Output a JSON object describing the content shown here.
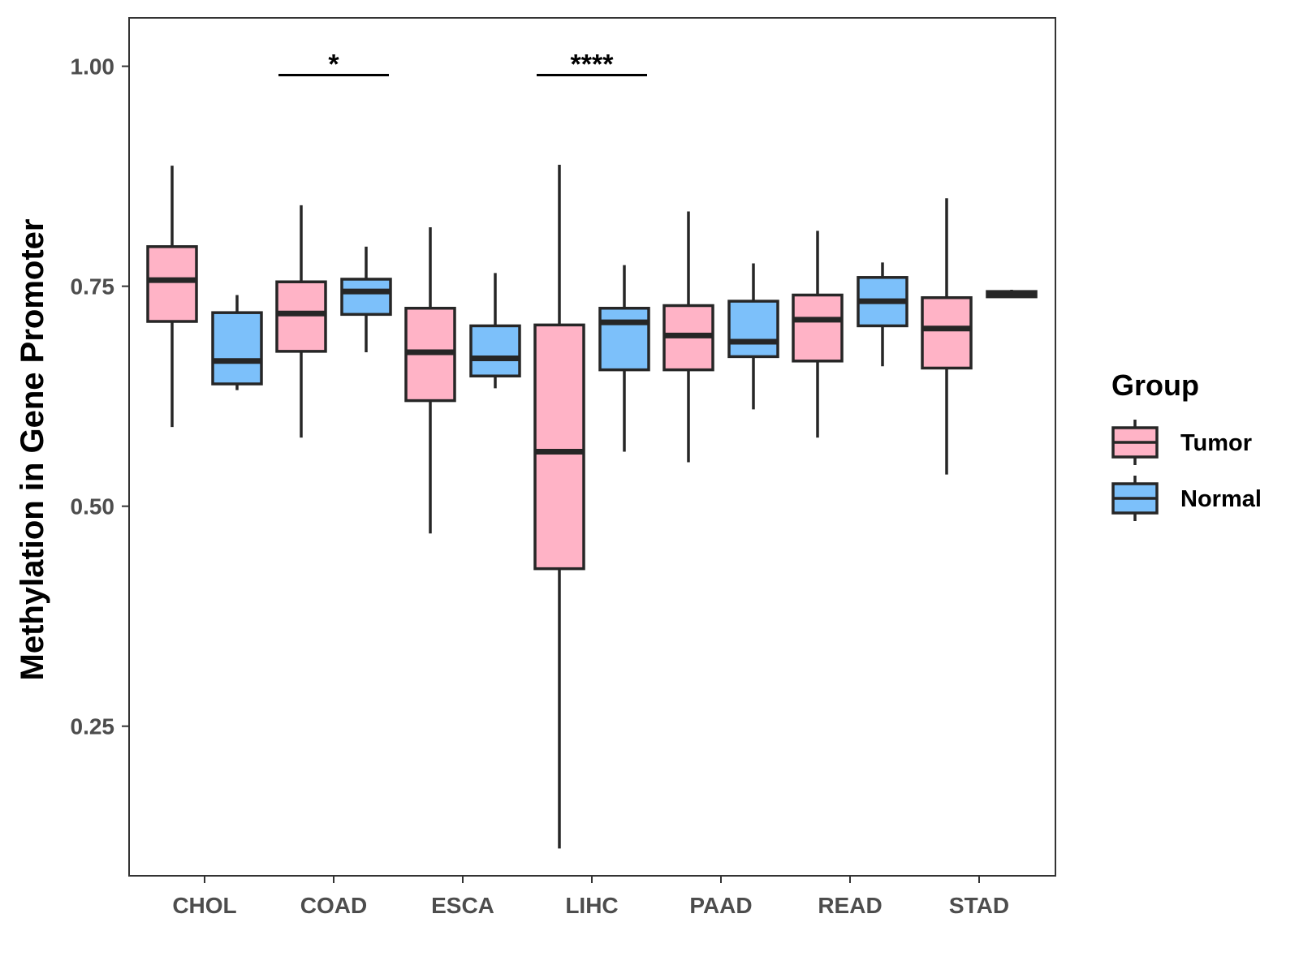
{
  "chart_data": {
    "type": "boxplot",
    "title": "",
    "xlabel": "",
    "ylabel": "Methylation in Gene Promoter",
    "ylim": [
      0.08,
      1.055
    ],
    "yticks": [
      0.25,
      0.5,
      0.75,
      1.0
    ],
    "ytick_labels": [
      "0.25",
      "0.50",
      "0.75",
      "1.00"
    ],
    "categories": [
      "CHOL",
      "COAD",
      "ESCA",
      "LIHC",
      "PAAD",
      "READ",
      "STAD"
    ],
    "grid": false,
    "legend_position": "right",
    "legend": {
      "title": "Group",
      "entries": [
        "Tumor",
        "Normal"
      ]
    },
    "colors": {
      "Tumor": "#ffb3c6",
      "Normal": "#7cc0fa",
      "outline": "#262626"
    },
    "series": [
      {
        "name": "Tumor",
        "boxes": [
          {
            "category": "CHOL",
            "whisker_low": 0.59,
            "q1": 0.71,
            "median": 0.757,
            "q3": 0.795,
            "whisker_high": 0.887
          },
          {
            "category": "COAD",
            "whisker_low": 0.578,
            "q1": 0.676,
            "median": 0.719,
            "q3": 0.755,
            "whisker_high": 0.842
          },
          {
            "category": "ESCA",
            "whisker_low": 0.469,
            "q1": 0.62,
            "median": 0.675,
            "q3": 0.725,
            "whisker_high": 0.817
          },
          {
            "category": "LIHC",
            "whisker_low": 0.111,
            "q1": 0.429,
            "median": 0.562,
            "q3": 0.706,
            "whisker_high": 0.888
          },
          {
            "category": "PAAD",
            "whisker_low": 0.55,
            "q1": 0.655,
            "median": 0.694,
            "q3": 0.728,
            "whisker_high": 0.835
          },
          {
            "category": "READ",
            "whisker_low": 0.578,
            "q1": 0.665,
            "median": 0.712,
            "q3": 0.74,
            "whisker_high": 0.813
          },
          {
            "category": "STAD",
            "whisker_low": 0.536,
            "q1": 0.657,
            "median": 0.702,
            "q3": 0.737,
            "whisker_high": 0.85
          }
        ]
      },
      {
        "name": "Normal",
        "boxes": [
          {
            "category": "CHOL",
            "whisker_low": 0.632,
            "q1": 0.639,
            "median": 0.665,
            "q3": 0.72,
            "whisker_high": 0.74
          },
          {
            "category": "COAD",
            "whisker_low": 0.675,
            "q1": 0.718,
            "median": 0.744,
            "q3": 0.758,
            "whisker_high": 0.795
          },
          {
            "category": "ESCA",
            "whisker_low": 0.634,
            "q1": 0.648,
            "median": 0.668,
            "q3": 0.705,
            "whisker_high": 0.765
          },
          {
            "category": "LIHC",
            "whisker_low": 0.562,
            "q1": 0.655,
            "median": 0.709,
            "q3": 0.725,
            "whisker_high": 0.774
          },
          {
            "category": "PAAD",
            "whisker_low": 0.61,
            "q1": 0.67,
            "median": 0.687,
            "q3": 0.733,
            "whisker_high": 0.776
          },
          {
            "category": "READ",
            "whisker_low": 0.659,
            "q1": 0.705,
            "median": 0.733,
            "q3": 0.76,
            "whisker_high": 0.777
          },
          {
            "category": "STAD",
            "whisker_low": 0.738,
            "q1": 0.738,
            "median": 0.741,
            "q3": 0.744,
            "whisker_high": 0.746
          }
        ]
      }
    ],
    "annotations": [
      {
        "category": "COAD",
        "label": "*",
        "y": 0.99
      },
      {
        "category": "LIHC",
        "label": "****",
        "y": 0.99
      }
    ]
  }
}
